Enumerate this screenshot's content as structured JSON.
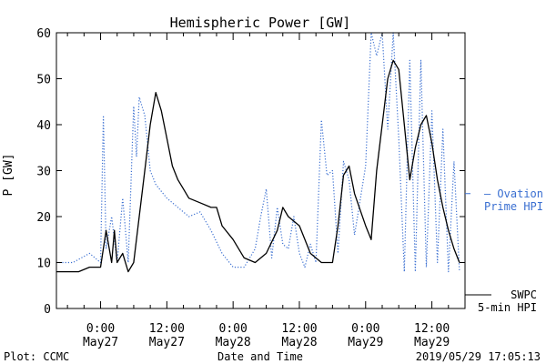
{
  "footer": {
    "credit": "Plot: CCMC",
    "timestamp": "2019/05/29 17:05:13"
  },
  "colors": {
    "swpc": "#000000",
    "ovation": "#3a6fd1",
    "axis": "#000000",
    "background": "#ffffff"
  },
  "chart_data": {
    "type": "line",
    "title": "Hemispheric Power [GW]",
    "xlabel": "Date and Time",
    "ylabel": "P [GW]",
    "ylim": [
      0,
      60
    ],
    "yticks": [
      0,
      10,
      20,
      30,
      40,
      50,
      60
    ],
    "xlim": [
      "2019-05-26 16:00",
      "2019-05-29 18:00"
    ],
    "xticks": [
      {
        "t": "2019-05-27 00:00",
        "time": "0:00",
        "date": "May27"
      },
      {
        "t": "2019-05-27 12:00",
        "time": "12:00",
        "date": "May27"
      },
      {
        "t": "2019-05-28 00:00",
        "time": "0:00",
        "date": "May28"
      },
      {
        "t": "2019-05-28 12:00",
        "time": "12:00",
        "date": "May28"
      },
      {
        "t": "2019-05-29 00:00",
        "time": "0:00",
        "date": "May29"
      },
      {
        "t": "2019-05-29 12:00",
        "time": "12:00",
        "date": "May29"
      }
    ],
    "grid": false,
    "legend_position": "right",
    "series": [
      {
        "name": "SWPC 5-min HPI",
        "style": "solid",
        "points": [
          [
            "2019-05-26 16:00",
            8
          ],
          [
            "2019-05-26 20:00",
            8
          ],
          [
            "2019-05-26 22:00",
            9
          ],
          [
            "2019-05-27 00:00",
            9
          ],
          [
            "2019-05-27 01:00",
            17
          ],
          [
            "2019-05-27 02:00",
            10
          ],
          [
            "2019-05-27 02:30",
            17
          ],
          [
            "2019-05-27 03:00",
            10
          ],
          [
            "2019-05-27 04:00",
            12
          ],
          [
            "2019-05-27 05:00",
            8
          ],
          [
            "2019-05-27 06:00",
            10
          ],
          [
            "2019-05-27 07:00",
            20
          ],
          [
            "2019-05-27 08:00",
            30
          ],
          [
            "2019-05-27 09:00",
            40
          ],
          [
            "2019-05-27 10:00",
            47
          ],
          [
            "2019-05-27 11:00",
            43
          ],
          [
            "2019-05-27 12:00",
            37
          ],
          [
            "2019-05-27 13:00",
            31
          ],
          [
            "2019-05-27 14:00",
            28
          ],
          [
            "2019-05-27 15:00",
            26
          ],
          [
            "2019-05-27 16:00",
            24
          ],
          [
            "2019-05-27 18:00",
            23
          ],
          [
            "2019-05-27 20:00",
            22
          ],
          [
            "2019-05-27 21:00",
            22
          ],
          [
            "2019-05-27 22:00",
            18
          ],
          [
            "2019-05-28 00:00",
            15
          ],
          [
            "2019-05-28 02:00",
            11
          ],
          [
            "2019-05-28 04:00",
            10
          ],
          [
            "2019-05-28 06:00",
            12
          ],
          [
            "2019-05-28 08:00",
            17
          ],
          [
            "2019-05-28 09:00",
            22
          ],
          [
            "2019-05-28 10:00",
            20
          ],
          [
            "2019-05-28 12:00",
            18
          ],
          [
            "2019-05-28 14:00",
            12
          ],
          [
            "2019-05-28 16:00",
            10
          ],
          [
            "2019-05-28 18:00",
            10
          ],
          [
            "2019-05-28 19:00",
            18
          ],
          [
            "2019-05-28 20:00",
            29
          ],
          [
            "2019-05-28 21:00",
            31
          ],
          [
            "2019-05-28 22:00",
            25
          ],
          [
            "2019-05-29 00:00",
            18
          ],
          [
            "2019-05-29 01:00",
            15
          ],
          [
            "2019-05-29 02:00",
            30
          ],
          [
            "2019-05-29 03:00",
            40
          ],
          [
            "2019-05-29 04:00",
            50
          ],
          [
            "2019-05-29 05:00",
            54
          ],
          [
            "2019-05-29 06:00",
            52
          ],
          [
            "2019-05-29 07:00",
            40
          ],
          [
            "2019-05-29 08:00",
            28
          ],
          [
            "2019-05-29 09:00",
            35
          ],
          [
            "2019-05-29 10:00",
            40
          ],
          [
            "2019-05-29 11:00",
            42
          ],
          [
            "2019-05-29 12:00",
            36
          ],
          [
            "2019-05-29 13:00",
            28
          ],
          [
            "2019-05-29 14:00",
            22
          ],
          [
            "2019-05-29 15:00",
            17
          ],
          [
            "2019-05-29 16:00",
            13
          ],
          [
            "2019-05-29 17:00",
            10
          ]
        ]
      },
      {
        "name": "Ovation Prime HPI",
        "style": "dotted",
        "points": [
          [
            "2019-05-26 16:00",
            10
          ],
          [
            "2019-05-26 19:00",
            10
          ],
          [
            "2019-05-26 22:00",
            12
          ],
          [
            "2019-05-27 00:00",
            10
          ],
          [
            "2019-05-27 00:30",
            42
          ],
          [
            "2019-05-27 01:00",
            13
          ],
          [
            "2019-05-27 02:00",
            20
          ],
          [
            "2019-05-27 03:00",
            10
          ],
          [
            "2019-05-27 04:00",
            24
          ],
          [
            "2019-05-27 05:00",
            10
          ],
          [
            "2019-05-27 06:00",
            44
          ],
          [
            "2019-05-27 06:30",
            33
          ],
          [
            "2019-05-27 07:00",
            46
          ],
          [
            "2019-05-27 08:00",
            42
          ],
          [
            "2019-05-27 09:00",
            30
          ],
          [
            "2019-05-27 10:00",
            27
          ],
          [
            "2019-05-27 12:00",
            24
          ],
          [
            "2019-05-27 14:00",
            22
          ],
          [
            "2019-05-27 16:00",
            20
          ],
          [
            "2019-05-27 18:00",
            21
          ],
          [
            "2019-05-27 20:00",
            17
          ],
          [
            "2019-05-27 22:00",
            12
          ],
          [
            "2019-05-28 00:00",
            9
          ],
          [
            "2019-05-28 02:00",
            9
          ],
          [
            "2019-05-28 04:00",
            13
          ],
          [
            "2019-05-28 05:00",
            20
          ],
          [
            "2019-05-28 06:00",
            26
          ],
          [
            "2019-05-28 07:00",
            11
          ],
          [
            "2019-05-28 08:00",
            22
          ],
          [
            "2019-05-28 09:00",
            14
          ],
          [
            "2019-05-28 10:00",
            13
          ],
          [
            "2019-05-28 11:00",
            20
          ],
          [
            "2019-05-28 12:00",
            12
          ],
          [
            "2019-05-28 13:00",
            9
          ],
          [
            "2019-05-28 14:00",
            14
          ],
          [
            "2019-05-28 15:00",
            10
          ],
          [
            "2019-05-28 16:00",
            41
          ],
          [
            "2019-05-28 17:00",
            29
          ],
          [
            "2019-05-28 18:00",
            30
          ],
          [
            "2019-05-28 19:00",
            12
          ],
          [
            "2019-05-28 20:00",
            32
          ],
          [
            "2019-05-28 21:00",
            28
          ],
          [
            "2019-05-28 22:00",
            16
          ],
          [
            "2019-05-29 00:00",
            31
          ],
          [
            "2019-05-29 01:00",
            60
          ],
          [
            "2019-05-29 02:00",
            55
          ],
          [
            "2019-05-29 03:00",
            60
          ],
          [
            "2019-05-29 04:00",
            39
          ],
          [
            "2019-05-29 05:00",
            60
          ],
          [
            "2019-05-29 06:00",
            37
          ],
          [
            "2019-05-29 07:00",
            8
          ],
          [
            "2019-05-29 08:00",
            54
          ],
          [
            "2019-05-29 09:00",
            8
          ],
          [
            "2019-05-29 10:00",
            54
          ],
          [
            "2019-05-29 11:00",
            9
          ],
          [
            "2019-05-29 12:00",
            43
          ],
          [
            "2019-05-29 13:00",
            10
          ],
          [
            "2019-05-29 14:00",
            39
          ],
          [
            "2019-05-29 15:00",
            8
          ],
          [
            "2019-05-29 16:00",
            32
          ],
          [
            "2019-05-29 17:00",
            8
          ]
        ]
      }
    ],
    "legend": [
      {
        "series": "Ovation Prime HPI",
        "lines": [
          "— Ovation",
          "Prime HPI"
        ]
      },
      {
        "series": "SWPC 5-min HPI",
        "lines": [
          "SWPC",
          "5-min HPI"
        ]
      }
    ]
  }
}
